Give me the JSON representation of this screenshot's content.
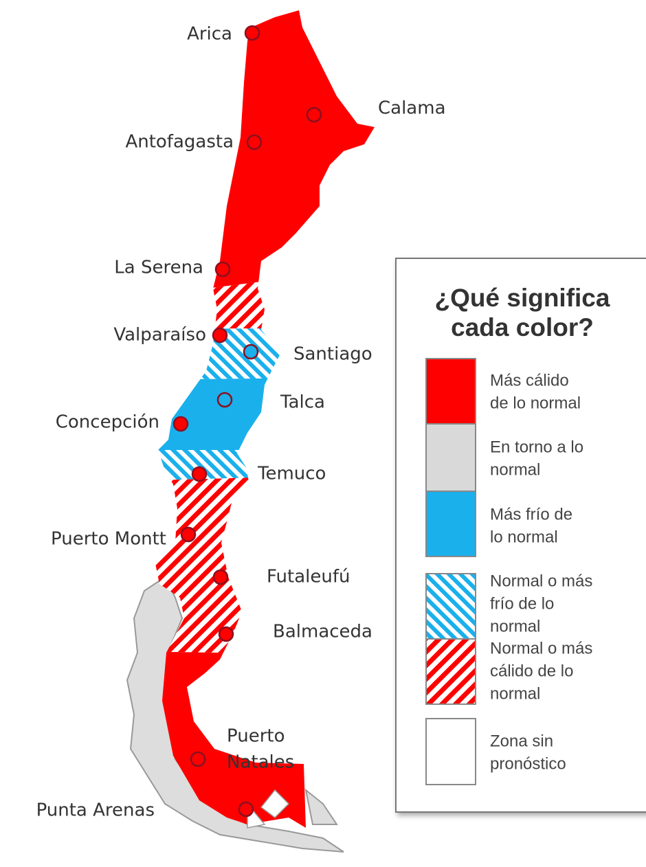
{
  "cities": [
    {
      "lines": [
        "Arica"
      ]
    },
    {
      "lines": [
        "Calama"
      ]
    },
    {
      "lines": [
        "Antofagasta"
      ]
    },
    {
      "lines": [
        "La Serena"
      ]
    },
    {
      "lines": [
        "Valparaíso"
      ]
    },
    {
      "lines": [
        "Santiago"
      ]
    },
    {
      "lines": [
        "Talca"
      ]
    },
    {
      "lines": [
        "Concepción"
      ]
    },
    {
      "lines": [
        "Temuco"
      ]
    },
    {
      "lines": [
        "Puerto Montt"
      ]
    },
    {
      "lines": [
        "Futaleufú"
      ]
    },
    {
      "lines": [
        "Balmaceda"
      ]
    },
    {
      "lines": [
        "Puerto",
        "Natales"
      ]
    },
    {
      "lines": [
        "Punta Arenas"
      ]
    }
  ],
  "legend": {
    "title_lines": [
      "¿Qué significa",
      "cada color?"
    ],
    "items": [
      {
        "lines": [
          "Más cálido",
          "de lo normal"
        ]
      },
      {
        "lines": [
          "En torno a lo",
          "normal"
        ]
      },
      {
        "lines": [
          "Más frío de",
          "lo normal"
        ]
      },
      {
        "lines": [
          "Normal o más",
          "frío de lo",
          "normal"
        ]
      },
      {
        "lines": [
          "Normal o más",
          "cálido de lo",
          "normal"
        ]
      },
      {
        "lines": [
          "Zona sin",
          "pronóstico"
        ]
      }
    ]
  }
}
